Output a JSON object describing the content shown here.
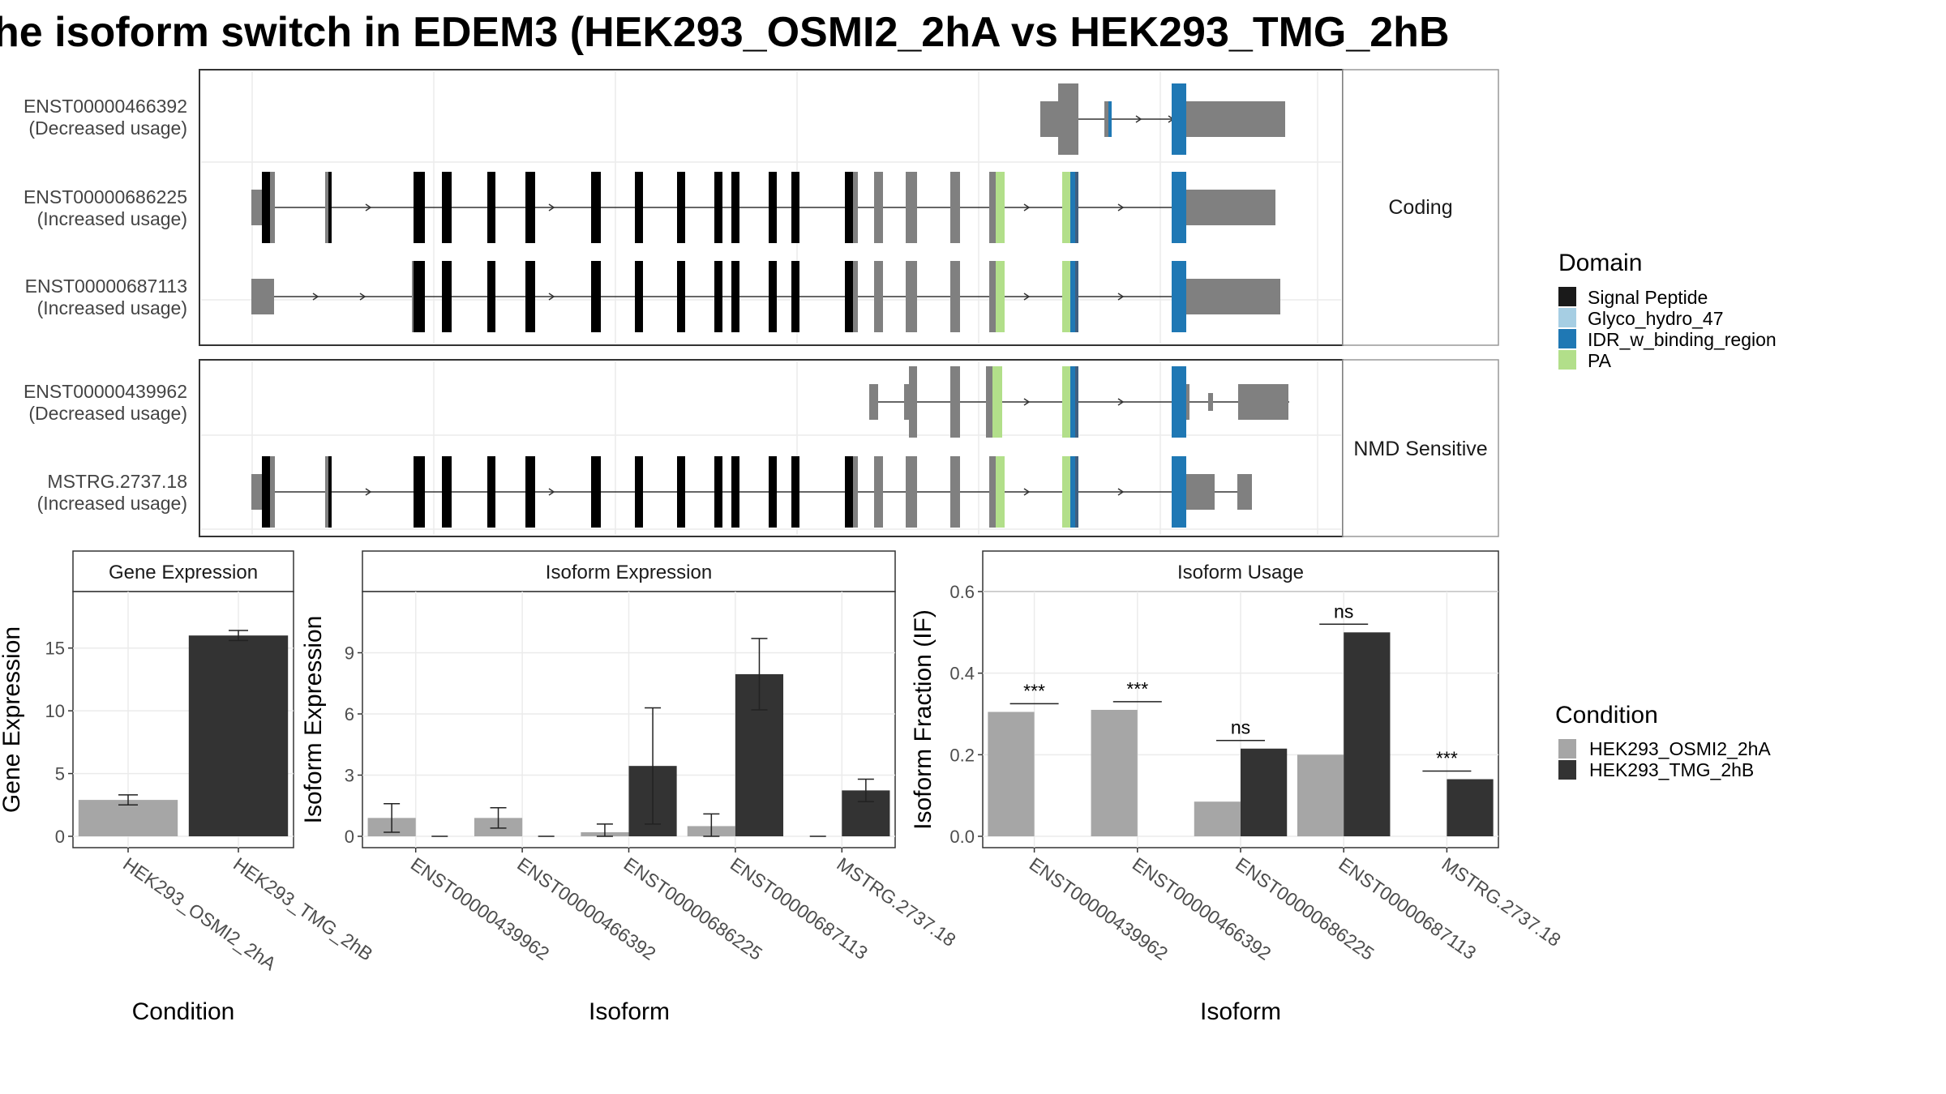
{
  "title": "he isoform switch in EDEM3 (HEK293_OSMI2_2hA vs HEK293_TMG_2hB",
  "colors": {
    "signal_peptide": "#1a1a1a",
    "glyco_hydro_47": "#a6cee3",
    "idr": "#1f78b4",
    "pa": "#b2df8a",
    "exon": "#808080",
    "cond_a": "#a6a6a6",
    "cond_b": "#333333"
  },
  "structure": {
    "facets": [
      {
        "label": "Coding",
        "transcripts": [
          {
            "id": "ENST00000466392",
            "usage": "(Decreased usage)"
          },
          {
            "id": "ENST00000686225",
            "usage": "(Increased usage)"
          },
          {
            "id": "ENST00000687113",
            "usage": "(Increased usage)"
          }
        ]
      },
      {
        "label": "NMD Sensitive",
        "transcripts": [
          {
            "id": "ENST00000439962",
            "usage": "(Decreased usage)"
          },
          {
            "id": "MSTRG.2737.18",
            "usage": "(Increased usage)"
          }
        ]
      }
    ]
  },
  "domain_legend": {
    "title": "Domain",
    "items": [
      {
        "label": "Signal Peptide",
        "color": "#1a1a1a"
      },
      {
        "label": "Glyco_hydro_47",
        "color": "#a6cee3"
      },
      {
        "label": "IDR_w_binding_region",
        "color": "#1f78b4"
      },
      {
        "label": "PA",
        "color": "#b2df8a"
      }
    ]
  },
  "condition_legend": {
    "title": "Condition",
    "items": [
      {
        "label": "HEK293_OSMI2_2hA",
        "color": "#a6a6a6"
      },
      {
        "label": "HEK293_TMG_2hB",
        "color": "#333333"
      }
    ]
  },
  "chart_data": [
    {
      "type": "bar",
      "title": "Gene Expression",
      "xlabel": "Condition",
      "ylabel": "Gene Expression",
      "ylim": [
        0,
        19.5
      ],
      "yticks": [
        0,
        5,
        10,
        15
      ],
      "categories": [
        "HEK293_OSMI2_2hA",
        "HEK293_TMG_2hB"
      ],
      "values": [
        2.9,
        16.0
      ],
      "errors": [
        [
          2.5,
          3.3
        ],
        [
          15.6,
          16.4
        ]
      ]
    },
    {
      "type": "bar",
      "title": "Isoform Expression",
      "xlabel": "Isoform",
      "ylabel": "Isoform Expression",
      "ylim": [
        0,
        12.0
      ],
      "yticks": [
        0,
        3,
        6,
        9
      ],
      "categories": [
        "ENST00000439962",
        "ENST00000466392",
        "ENST00000686225",
        "ENST00000687113",
        "MSTRG.2737.18"
      ],
      "series": [
        {
          "name": "HEK293_OSMI2_2hA",
          "values": [
            0.9,
            0.9,
            0.2,
            0.5,
            0.0
          ],
          "errors": [
            [
              0.2,
              1.6
            ],
            [
              0.4,
              1.4
            ],
            [
              0.0,
              0.6
            ],
            [
              0.0,
              1.1
            ],
            [
              0.0,
              0.0
            ]
          ]
        },
        {
          "name": "HEK293_TMG_2hB",
          "values": [
            0.0,
            0.0,
            3.45,
            7.95,
            2.25
          ],
          "errors": [
            [
              0.0,
              0.0
            ],
            [
              0.0,
              0.0
            ],
            [
              0.6,
              6.3
            ],
            [
              6.2,
              9.7
            ],
            [
              1.7,
              2.8
            ]
          ]
        }
      ]
    },
    {
      "type": "bar",
      "title": "Isoform Usage",
      "xlabel": "Isoform",
      "ylabel": "Isoform Fraction (IF)",
      "ylim": [
        0,
        0.6
      ],
      "yticks": [
        "0.0",
        "0.2",
        "0.4",
        "0.6"
      ],
      "categories": [
        "ENST00000439962",
        "ENST00000466392",
        "ENST00000686225",
        "ENST00000687113",
        "MSTRG.2737.18"
      ],
      "series": [
        {
          "name": "HEK293_OSMI2_2hA",
          "values": [
            0.305,
            0.31,
            0.085,
            0.2,
            0.0
          ]
        },
        {
          "name": "HEK293_TMG_2hB",
          "values": [
            0.0,
            0.0,
            0.215,
            0.5,
            0.14
          ]
        }
      ],
      "annotations": [
        "***",
        "***",
        "ns",
        "ns",
        "***"
      ],
      "annotation_values": [
        0.325,
        0.33,
        0.235,
        0.52,
        0.16
      ]
    }
  ]
}
